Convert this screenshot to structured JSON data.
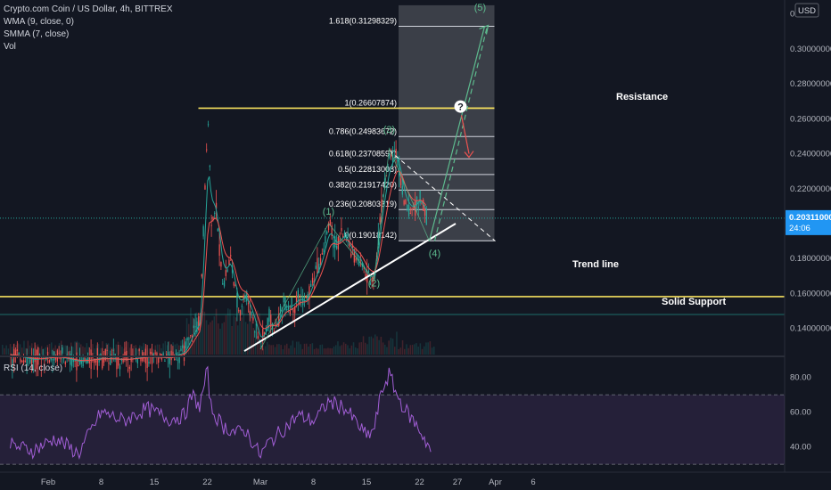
{
  "legend": {
    "symbol_line": "Crypto.com Coin / US Dollar, 4h, BITTREX",
    "indicators": [
      "WMA (9, close, 0)",
      "SMMA (7, close)",
      "Vol"
    ],
    "rsi_label": "RSI (14, close)"
  },
  "colors": {
    "background": "#131722",
    "up": "#26a69a",
    "down": "#ef5350",
    "wma": "#26a69a",
    "smma": "#ef5350",
    "level_line": "#f6e05e",
    "rsi": "#a25ed6",
    "price_badge": "#2196f3",
    "fib_box": "#5d6068"
  },
  "currency_badge": "USD",
  "price_badge": {
    "price": "0.20311000",
    "countdown": "24:06"
  },
  "annotations": {
    "resistance": "Resistance",
    "support": "Solid Support",
    "trend_line": "Trend line",
    "question_mark": "?"
  },
  "fib_levels": [
    {
      "label": "1.618(0.31298329)",
      "price": 0.31298329
    },
    {
      "label": "1(0.26607874)",
      "price": 0.26607874
    },
    {
      "label": "0.786(0.24983672)",
      "price": 0.24983672
    },
    {
      "label": "0.618(0.23708597)",
      "price": 0.23708597
    },
    {
      "label": "0.5(0.22813008)",
      "price": 0.22813008
    },
    {
      "label": "0.382(0.21917420)",
      "price": 0.2191742
    },
    {
      "label": "0.236(0.20803319)",
      "price": 0.20803319
    },
    {
      "label": "0(0.19018142)",
      "price": 0.19018142
    }
  ],
  "waves": [
    {
      "label": "(1)",
      "date": "Mar 10",
      "price": 0.205
    },
    {
      "label": "(2)",
      "date": "Mar 16",
      "price": 0.164
    },
    {
      "label": "(3)",
      "date": "Mar 18",
      "price": 0.252
    },
    {
      "label": "(4)",
      "date": "Mar 24",
      "price": 0.181
    },
    {
      "label": "(5)",
      "date": "Mar 30",
      "price": 0.322
    }
  ],
  "chart_data": {
    "type": "candlestick",
    "title": "Crypto.com Coin / US Dollar, 4h, BITTREX",
    "x_ticks": [
      "Feb",
      "8",
      "15",
      "22",
      "Mar",
      "8",
      "15",
      "22",
      "27",
      "Apr",
      "6"
    ],
    "x_tick_dates": [
      "Feb 1",
      "Feb 8",
      "Feb 15",
      "Feb 22",
      "Mar 1",
      "Mar 8",
      "Mar 15",
      "Mar 22",
      "Mar 27",
      "Apr 1",
      "Apr 6"
    ],
    "price_axis": {
      "ticks": [
        0.14,
        0.16,
        0.18,
        0.2,
        0.22,
        0.24,
        0.26,
        0.28,
        0.3,
        0.32
      ],
      "tick_labels": [
        "0.14000000",
        "0.16000000",
        "0.18000000",
        "0.20000000",
        "0.22000000",
        "0.24000000",
        "0.26000000",
        "0.28000000",
        "0.30000000",
        "0.3"
      ],
      "range": [
        0.125,
        0.327
      ]
    },
    "rsi_axis": {
      "ticks": [
        40,
        60,
        80
      ],
      "tick_labels": [
        "40.00",
        "60.00",
        "80.00"
      ],
      "range": [
        27,
        88
      ],
      "bands": [
        30,
        70
      ]
    },
    "price_path": [
      [
        "Jan 27",
        0.125
      ],
      [
        "Jan 30",
        0.122
      ],
      [
        "Feb 2",
        0.124
      ],
      [
        "Feb 5",
        0.121
      ],
      [
        "Feb 8",
        0.123
      ],
      [
        "Feb 11",
        0.122
      ],
      [
        "Feb 14",
        0.124
      ],
      [
        "Feb 17",
        0.123
      ],
      [
        "Feb 19",
        0.127
      ],
      [
        "Feb 20",
        0.138
      ],
      [
        "Feb 21",
        0.145
      ],
      [
        "Feb 22",
        0.265
      ],
      [
        "Feb 22 12:00",
        0.2
      ],
      [
        "Feb 23",
        0.21
      ],
      [
        "Feb 24",
        0.165
      ],
      [
        "Feb 25",
        0.18
      ],
      [
        "Feb 26",
        0.15
      ],
      [
        "Feb 27",
        0.16
      ],
      [
        "Mar 1",
        0.13
      ],
      [
        "Mar 2",
        0.145
      ],
      [
        "Mar 3",
        0.14
      ],
      [
        "Mar 4",
        0.155
      ],
      [
        "Mar 5",
        0.152
      ],
      [
        "Mar 6",
        0.158
      ],
      [
        "Mar 7",
        0.155
      ],
      [
        "Mar 8",
        0.17
      ],
      [
        "Mar 9",
        0.18
      ],
      [
        "Mar 10",
        0.2
      ],
      [
        "Mar 11",
        0.186
      ],
      [
        "Mar 12",
        0.195
      ],
      [
        "Mar 13",
        0.183
      ],
      [
        "Mar 14",
        0.18
      ],
      [
        "Mar 15",
        0.168
      ],
      [
        "Mar 16",
        0.17
      ],
      [
        "Mar 17",
        0.215
      ],
      [
        "Mar 18",
        0.238
      ],
      [
        "Mar 19",
        0.24
      ],
      [
        "Mar 20",
        0.21
      ],
      [
        "Mar 21",
        0.208
      ],
      [
        "Mar 22",
        0.215
      ],
      [
        "Mar 23",
        0.203
      ]
    ],
    "rsi_path": [
      [
        "Jan 27",
        41
      ],
      [
        "Jan 30",
        38
      ],
      [
        "Feb 2",
        45
      ],
      [
        "Feb 5",
        36
      ],
      [
        "Feb 8",
        60
      ],
      [
        "Feb 11",
        55
      ],
      [
        "Feb 14",
        62
      ],
      [
        "Feb 17",
        56
      ],
      [
        "Feb 19",
        58
      ],
      [
        "Feb 20",
        70
      ],
      [
        "Feb 21",
        63
      ],
      [
        "Feb 22",
        84
      ],
      [
        "Feb 22 12:00",
        62
      ],
      [
        "Feb 24",
        52
      ],
      [
        "Feb 26",
        48
      ],
      [
        "Feb 27",
        50
      ],
      [
        "Mar 1",
        35
      ],
      [
        "Mar 2",
        42
      ],
      [
        "Mar 4",
        50
      ],
      [
        "Mar 6",
        58
      ],
      [
        "Mar 8",
        55
      ],
      [
        "Mar 9",
        60
      ],
      [
        "Mar 10",
        66
      ],
      [
        "Mar 12",
        63
      ],
      [
        "Mar 14",
        52
      ],
      [
        "Mar 15",
        46
      ],
      [
        "Mar 16",
        50
      ],
      [
        "Mar 17",
        72
      ],
      [
        "Mar 18",
        82
      ],
      [
        "Mar 19",
        70
      ],
      [
        "Mar 20",
        62
      ],
      [
        "Mar 21",
        56
      ],
      [
        "Mar 22",
        50
      ],
      [
        "Mar 23",
        42
      ],
      [
        "Mar 23 12:00",
        38
      ]
    ],
    "trend_line": [
      [
        "Mar 1",
        0.127
      ],
      [
        "Mar 27",
        0.2
      ]
    ],
    "resistance": 0.2661,
    "support": 0.1582,
    "projection_line": [
      [
        "Mar 18",
        0.242
      ],
      [
        "Apr 1",
        0.19
      ]
    ],
    "elliott_path": [
      [
        "Mar 24",
        0.19
      ],
      [
        "Mar 30",
        0.313
      ]
    ],
    "question_target": {
      "date": "Mar 28",
      "price": 0.266
    },
    "red_drop": [
      [
        "Mar 28",
        0.262
      ],
      [
        "Mar 29",
        0.24
      ]
    ]
  }
}
